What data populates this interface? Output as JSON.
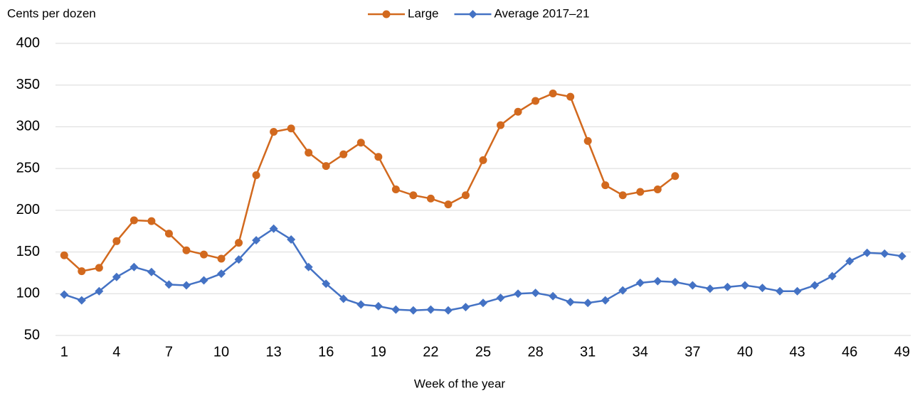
{
  "chart_data": {
    "type": "line",
    "y_label": "Cents per dozen",
    "x_label": "Week of the year",
    "x": [
      1,
      2,
      3,
      4,
      5,
      6,
      7,
      8,
      9,
      10,
      11,
      12,
      13,
      14,
      15,
      16,
      17,
      18,
      19,
      20,
      21,
      22,
      23,
      24,
      25,
      26,
      27,
      28,
      29,
      30,
      31,
      32,
      33,
      34,
      35,
      36,
      37,
      38,
      39,
      40,
      41,
      42,
      43,
      44,
      45,
      46,
      47,
      48,
      49
    ],
    "xlim": [
      0.5,
      49.5
    ],
    "xticks": [
      1,
      4,
      7,
      10,
      13,
      16,
      19,
      22,
      25,
      28,
      31,
      34,
      37,
      40,
      43,
      46,
      49
    ],
    "ylim": [
      50,
      400
    ],
    "yticks": [
      50,
      100,
      150,
      200,
      250,
      300,
      350,
      400
    ],
    "grid": true,
    "legend": "top",
    "series": [
      {
        "name": "Large",
        "color": "#d2691e",
        "marker": "circle",
        "values": [
          146,
          127,
          131,
          163,
          188,
          187,
          172,
          152,
          147,
          142,
          161,
          242,
          294,
          298,
          269,
          253,
          267,
          281,
          264,
          225,
          218,
          214,
          207,
          218,
          260,
          302,
          318,
          331,
          340,
          336,
          283,
          230,
          218,
          222,
          225,
          241,
          null,
          null,
          null,
          null,
          null,
          null,
          null,
          null,
          null,
          null,
          null,
          null,
          null
        ]
      },
      {
        "name": "Average 2017–21",
        "color": "#4472c4",
        "marker": "diamond",
        "values": [
          99,
          92,
          103,
          120,
          132,
          126,
          111,
          110,
          116,
          124,
          141,
          164,
          178,
          165,
          132,
          112,
          94,
          87,
          85,
          81,
          80,
          81,
          80,
          84,
          89,
          95,
          100,
          101,
          97,
          90,
          89,
          92,
          104,
          113,
          115,
          114,
          110,
          106,
          108,
          110,
          107,
          103,
          103,
          110,
          121,
          139,
          149,
          148,
          145
        ]
      }
    ]
  }
}
